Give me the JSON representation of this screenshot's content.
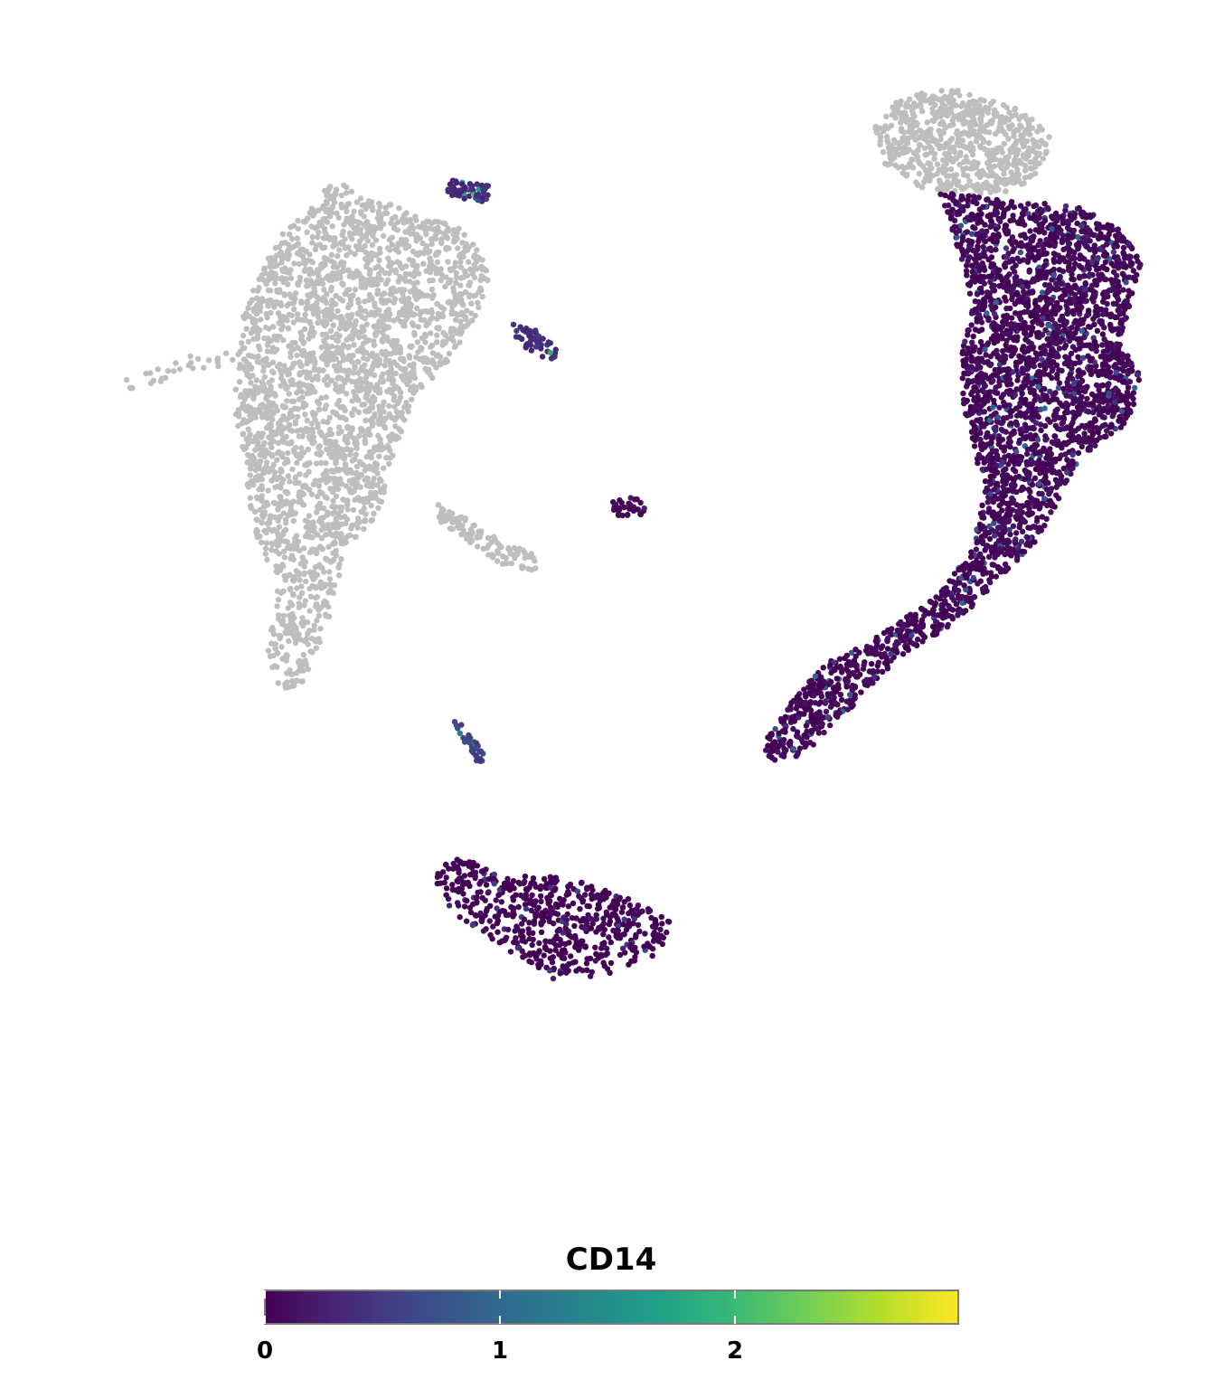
{
  "chart_data": {
    "type": "scatter",
    "title": "",
    "xlabel": "",
    "ylabel": "",
    "xlim": [
      0,
      100
    ],
    "ylim": [
      0,
      100
    ],
    "grid": false,
    "axes_visible": false,
    "na_color": "#bebebe",
    "legend": {
      "title": "CD14",
      "placement": "bottom",
      "type": "colorbar",
      "range": [
        0,
        2.95
      ],
      "ticks": [
        0,
        1,
        2
      ],
      "tick_labels": [
        "0",
        "1",
        "2"
      ],
      "colormap": "viridis",
      "colors": [
        "#440154",
        "#482878",
        "#3e4a89",
        "#31688e",
        "#26828e",
        "#1f9e89",
        "#35b779",
        "#6ece58",
        "#b5de2b",
        "#fde725"
      ]
    },
    "clusters": [
      {
        "name": "",
        "n": 2600,
        "expressed": false,
        "value_range": [
          0,
          0
        ],
        "polygon": [
          [
            16,
            78
          ],
          [
            19,
            84
          ],
          [
            22,
            87
          ],
          [
            24,
            89
          ],
          [
            28,
            87.5
          ],
          [
            31,
            86
          ],
          [
            35,
            85
          ],
          [
            37,
            83
          ],
          [
            38,
            80
          ],
          [
            36,
            76
          ],
          [
            34,
            73
          ],
          [
            31,
            70
          ],
          [
            29,
            64
          ],
          [
            28,
            60
          ],
          [
            25,
            57
          ],
          [
            24,
            52
          ],
          [
            22,
            47
          ],
          [
            21,
            44.5
          ],
          [
            19,
            45
          ],
          [
            18,
            48
          ],
          [
            19,
            54
          ],
          [
            17,
            58
          ],
          [
            16,
            64
          ],
          [
            15,
            70
          ]
        ]
      },
      {
        "name": "",
        "n": 30,
        "expressed": false,
        "value_range": [
          0,
          0
        ],
        "polygon": [
          [
            5,
            71.5
          ],
          [
            11,
            74
          ],
          [
            16,
            74
          ],
          [
            16,
            72.5
          ],
          [
            11,
            72.5
          ],
          [
            6,
            70.5
          ]
        ]
      },
      {
        "name": "",
        "n": 110,
        "expressed": false,
        "value_range": [
          0,
          0
        ],
        "polygon": [
          [
            33,
            61
          ],
          [
            36,
            59.5
          ],
          [
            39,
            57.5
          ],
          [
            42,
            56.5
          ],
          [
            42,
            55
          ],
          [
            39,
            55.5
          ],
          [
            36,
            57.5
          ],
          [
            33,
            59.5
          ]
        ]
      },
      {
        "name": "",
        "n": 700,
        "expressed": false,
        "value_range": [
          0,
          0
        ],
        "polygon": [
          [
            72,
            94
          ],
          [
            75,
            96.5
          ],
          [
            79,
            97
          ],
          [
            83,
            96
          ],
          [
            86,
            95
          ],
          [
            88,
            93
          ],
          [
            87,
            89.5
          ],
          [
            84,
            88
          ],
          [
            80,
            87.5
          ],
          [
            76,
            88.5
          ],
          [
            73,
            90.5
          ]
        ]
      },
      {
        "name": "",
        "n": 3200,
        "expressed": true,
        "value_range": [
          0,
          1.0
        ],
        "polygon": [
          [
            78,
            88
          ],
          [
            82,
            87.5
          ],
          [
            86,
            87
          ],
          [
            90,
            87
          ],
          [
            94,
            85
          ],
          [
            96,
            82
          ],
          [
            95,
            78
          ],
          [
            94,
            75
          ],
          [
            96,
            72
          ],
          [
            95,
            68
          ],
          [
            92,
            66
          ],
          [
            90,
            64
          ],
          [
            88,
            60
          ],
          [
            87,
            58
          ],
          [
            85,
            56
          ],
          [
            83,
            54
          ],
          [
            80,
            51
          ],
          [
            77,
            49
          ],
          [
            75,
            48
          ],
          [
            73,
            46
          ],
          [
            70,
            43
          ],
          [
            67,
            40
          ],
          [
            64,
            38
          ],
          [
            62,
            39.5
          ],
          [
            63,
            41
          ],
          [
            65,
            44
          ],
          [
            68,
            47
          ],
          [
            72,
            49
          ],
          [
            75,
            51
          ],
          [
            78,
            53
          ],
          [
            81,
            57
          ],
          [
            82,
            62
          ],
          [
            81,
            66
          ],
          [
            80,
            70
          ],
          [
            80,
            74
          ],
          [
            81,
            78
          ],
          [
            80,
            82
          ],
          [
            79,
            85
          ]
        ]
      },
      {
        "name": "",
        "n": 600,
        "expressed": true,
        "value_range": [
          0,
          0.6
        ],
        "polygon": [
          [
            33,
            29
          ],
          [
            35,
            30
          ],
          [
            37,
            29.5
          ],
          [
            40,
            28.5
          ],
          [
            43,
            28.5
          ],
          [
            46,
            28
          ],
          [
            49,
            27
          ],
          [
            54,
            25
          ],
          [
            54,
            23
          ],
          [
            52,
            21
          ],
          [
            49,
            20
          ],
          [
            46,
            19.5
          ],
          [
            43,
            19.5
          ],
          [
            41,
            21
          ],
          [
            38,
            23
          ],
          [
            35,
            25
          ],
          [
            33,
            27
          ]
        ]
      },
      {
        "name": "",
        "n": 50,
        "expressed": true,
        "value_range": [
          0.3,
          2.0
        ],
        "polygon": [
          [
            40,
            76.5
          ],
          [
            42,
            76
          ],
          [
            44,
            74.5
          ],
          [
            43.5,
            73
          ],
          [
            42,
            74
          ],
          [
            40,
            75
          ]
        ]
      },
      {
        "name": "",
        "n": 60,
        "expressed": true,
        "value_range": [
          0.3,
          2.2
        ],
        "polygon": [
          [
            34,
            89
          ],
          [
            36,
            89
          ],
          [
            38,
            88.5
          ],
          [
            37.5,
            87
          ],
          [
            35,
            87.5
          ],
          [
            34,
            88
          ]
        ]
      },
      {
        "name": "",
        "n": 30,
        "expressed": true,
        "value_range": [
          0.5,
          2.2
        ],
        "polygon": [
          [
            34.5,
            42
          ],
          [
            35.5,
            42
          ],
          [
            37.5,
            39
          ],
          [
            37,
            38
          ],
          [
            36,
            39.5
          ]
        ]
      },
      {
        "name": "",
        "n": 30,
        "expressed": true,
        "value_range": [
          0,
          0.4
        ],
        "polygon": [
          [
            48.5,
            61
          ],
          [
            51,
            61.5
          ],
          [
            52,
            60
          ],
          [
            50,
            59.5
          ],
          [
            49,
            60
          ]
        ]
      }
    ]
  }
}
